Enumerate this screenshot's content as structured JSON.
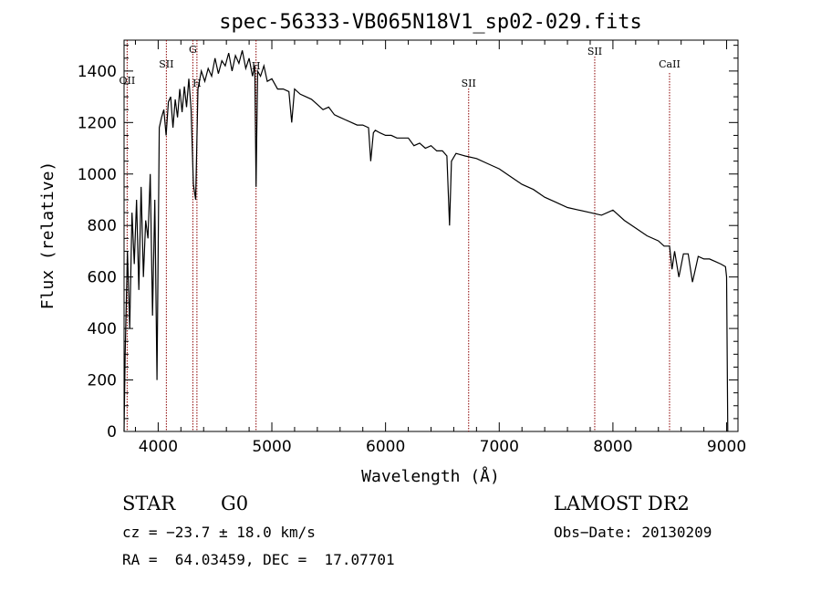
{
  "chart_data": {
    "type": "line",
    "title": "spec-56333-VB065N18V1_sp02-029.fits",
    "xlabel": "Wavelength (Å)",
    "ylabel": "Flux (relative)",
    "xlim": [
      3700,
      9100
    ],
    "ylim": [
      0,
      1520
    ],
    "xticks": [
      4000,
      5000,
      6000,
      7000,
      8000,
      9000
    ],
    "yticks": [
      0,
      200,
      400,
      600,
      800,
      1000,
      1200,
      1400
    ],
    "grid": false,
    "series": [
      {
        "x": [
          3700,
          3710,
          3730,
          3750,
          3770,
          3790,
          3810,
          3830,
          3850,
          3870,
          3890,
          3910,
          3930,
          3950,
          3970,
          3990,
          4010,
          4030,
          4050,
          4070,
          4090,
          4110,
          4130,
          4150,
          4170,
          4190,
          4210,
          4230,
          4250,
          4270,
          4290,
          4310,
          4330,
          4350,
          4380,
          4410,
          4440,
          4470,
          4500,
          4530,
          4560,
          4590,
          4620,
          4650,
          4680,
          4710,
          4740,
          4770,
          4800,
          4830,
          4850,
          4861,
          4875,
          4900,
          4930,
          4960,
          5000,
          5050,
          5100,
          5150,
          5175,
          5200,
          5250,
          5300,
          5350,
          5400,
          5450,
          5500,
          5550,
          5600,
          5650,
          5700,
          5750,
          5800,
          5850,
          5870,
          5893,
          5910,
          5950,
          6000,
          6050,
          6100,
          6150,
          6200,
          6250,
          6300,
          6350,
          6400,
          6450,
          6500,
          6540,
          6563,
          6580,
          6620,
          6700,
          6800,
          6900,
          7000,
          7100,
          7200,
          7300,
          7400,
          7500,
          7600,
          7700,
          7800,
          7900,
          8000,
          8100,
          8200,
          8300,
          8400,
          8450,
          8498,
          8520,
          8542,
          8580,
          8620,
          8662,
          8700,
          8750,
          8800,
          8850,
          8900,
          8950,
          8990,
          9000,
          9010
        ],
        "y": [
          0,
          300,
          700,
          400,
          850,
          650,
          900,
          550,
          950,
          600,
          820,
          750,
          1000,
          450,
          900,
          200,
          1180,
          1220,
          1250,
          1150,
          1280,
          1300,
          1180,
          1290,
          1220,
          1330,
          1240,
          1340,
          1260,
          1370,
          1250,
          960,
          900,
          1330,
          1400,
          1360,
          1410,
          1380,
          1450,
          1390,
          1440,
          1420,
          1470,
          1400,
          1460,
          1430,
          1480,
          1410,
          1450,
          1380,
          1420,
          950,
          1400,
          1380,
          1420,
          1360,
          1370,
          1330,
          1330,
          1320,
          1200,
          1330,
          1310,
          1300,
          1290,
          1270,
          1250,
          1260,
          1230,
          1220,
          1210,
          1200,
          1190,
          1190,
          1180,
          1050,
          1160,
          1170,
          1160,
          1150,
          1150,
          1140,
          1140,
          1140,
          1110,
          1120,
          1100,
          1110,
          1090,
          1090,
          1070,
          800,
          1050,
          1080,
          1070,
          1060,
          1040,
          1020,
          990,
          960,
          940,
          910,
          890,
          870,
          860,
          850,
          840,
          860,
          820,
          790,
          760,
          740,
          720,
          720,
          630,
          700,
          600,
          690,
          690,
          580,
          680,
          670,
          670,
          660,
          650,
          640,
          600,
          0
        ]
      }
    ],
    "annotations": [
      {
        "label": "OII",
        "x": 3727
      },
      {
        "label": "SII",
        "x": 4072
      },
      {
        "label": "G",
        "x": 4305
      },
      {
        "label": "H",
        "x": 4341
      },
      {
        "label": "H",
        "x": 4861
      },
      {
        "label": "SII",
        "x": 6731
      },
      {
        "label": "SII",
        "x": 7840
      },
      {
        "label": "CaII",
        "x": 8498
      }
    ]
  },
  "info": {
    "object_class": "STAR",
    "subclass": "G0",
    "survey": "LAMOST DR2",
    "redshift": "cz = −23.7 ± 18.0 km/s",
    "obs_date": "Obs−Date: 20130209",
    "coords": "RA =  64.03459, DEC =  17.07701"
  },
  "colors": {
    "spectrum": "#000000",
    "line_marker": "#8b0000",
    "axes": "#000000"
  }
}
